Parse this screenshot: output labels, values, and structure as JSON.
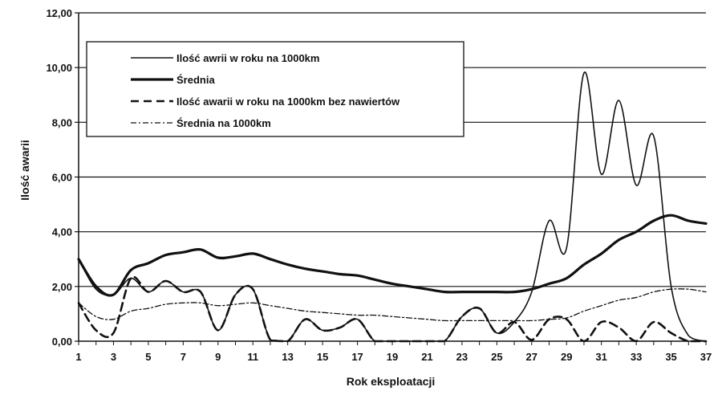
{
  "chart_data": {
    "type": "line",
    "xlabel": "Rok eksploatacji",
    "ylabel": "Ilość awarii",
    "xlim": [
      1,
      37
    ],
    "ylim": [
      0,
      12
    ],
    "x_ticks": [
      "1",
      "3",
      "5",
      "7",
      "9",
      "11",
      "13",
      "15",
      "17",
      "19",
      "21",
      "23",
      "25",
      "27",
      "29",
      "31",
      "33",
      "35",
      "37"
    ],
    "y_ticks": [
      "0,00",
      "2,00",
      "4,00",
      "6,00",
      "8,00",
      "10,00",
      "12,00"
    ],
    "grid": "horizontal",
    "legend_position": "upper-left",
    "x": [
      1,
      2,
      3,
      4,
      5,
      6,
      7,
      8,
      9,
      10,
      11,
      12,
      13,
      14,
      15,
      16,
      17,
      18,
      19,
      20,
      21,
      22,
      23,
      24,
      25,
      26,
      27,
      28,
      29,
      30,
      31,
      32,
      33,
      34,
      35,
      36,
      37
    ],
    "series": [
      {
        "name": "Ilość awrii w roku na 1000km",
        "style": "solid-thin",
        "values": [
          3.0,
          1.9,
          1.7,
          2.3,
          1.8,
          2.2,
          1.8,
          1.8,
          0.4,
          1.7,
          1.9,
          0.05,
          0.0,
          0.8,
          0.4,
          0.5,
          0.8,
          0.0,
          0.0,
          0.0,
          0.0,
          0.0,
          0.9,
          1.2,
          0.3,
          0.7,
          1.8,
          4.4,
          3.4,
          9.8,
          6.1,
          8.8,
          5.7,
          7.5,
          2.0,
          0.2,
          0.0
        ]
      },
      {
        "name": "Średnia",
        "style": "solid-thick",
        "values": [
          3.0,
          2.0,
          1.7,
          2.6,
          2.85,
          3.15,
          3.25,
          3.35,
          3.05,
          3.1,
          3.2,
          3.0,
          2.8,
          2.65,
          2.55,
          2.45,
          2.4,
          2.25,
          2.1,
          2.0,
          1.9,
          1.8,
          1.8,
          1.8,
          1.8,
          1.8,
          1.9,
          2.1,
          2.3,
          2.8,
          3.2,
          3.7,
          4.0,
          4.4,
          4.6,
          4.4,
          4.3
        ]
      },
      {
        "name": "Ilość awarii w roku na 1000km bez nawiertów",
        "style": "dashed",
        "values": [
          1.4,
          0.4,
          0.3,
          2.3,
          1.8,
          2.2,
          1.8,
          1.8,
          0.4,
          1.7,
          1.9,
          0.05,
          0.0,
          0.8,
          0.4,
          0.5,
          0.8,
          0.0,
          0.0,
          0.0,
          0.0,
          0.0,
          0.9,
          1.2,
          0.3,
          0.7,
          0.05,
          0.8,
          0.8,
          0.0,
          0.7,
          0.5,
          0.0,
          0.7,
          0.3,
          0.0,
          0.0
        ]
      },
      {
        "name": "Średnia na 1000km",
        "style": "dash-dot",
        "values": [
          1.4,
          0.9,
          0.8,
          1.1,
          1.2,
          1.35,
          1.4,
          1.4,
          1.3,
          1.35,
          1.4,
          1.3,
          1.2,
          1.1,
          1.05,
          1.0,
          0.95,
          0.95,
          0.9,
          0.85,
          0.8,
          0.75,
          0.75,
          0.75,
          0.75,
          0.75,
          0.75,
          0.8,
          0.85,
          1.1,
          1.3,
          1.5,
          1.6,
          1.8,
          1.9,
          1.9,
          1.8
        ]
      }
    ]
  }
}
